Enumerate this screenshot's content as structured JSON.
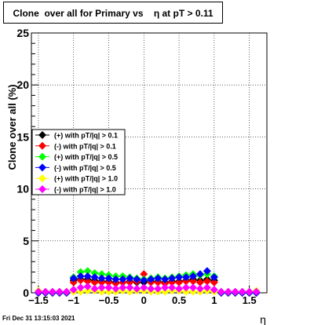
{
  "title": "Clone  over all for Primary vs    η at pT > 0.11",
  "footer": "Fri Dec 31 13:15:03 2021",
  "chart_data": {
    "type": "scatter",
    "title": "Clone  over all for Primary vs    η at pT > 0.11",
    "xlabel": "η",
    "ylabel": "Clone  over all (%)",
    "xlim": [
      -1.6,
      1.75
    ],
    "ylim": [
      0,
      25
    ],
    "xticks": [
      -1.5,
      -1,
      -0.5,
      0,
      0.5,
      1,
      1.5
    ],
    "xtick_labels": [
      "−1.5",
      "−1",
      "−0.5",
      "0",
      "0.5",
      "1",
      "1.5"
    ],
    "yticks": [
      0,
      5,
      10,
      15,
      20,
      25
    ],
    "ytick_labels": [
      "0",
      "5",
      "10",
      "15",
      "20",
      "25"
    ],
    "grid": true,
    "legend_position": "left-middle",
    "series": [
      {
        "name": "(+) with pT/|q| > 0.1",
        "color": "#000000",
        "x": [
          -1.5,
          -1.4,
          -1.3,
          -1.2,
          -1.1,
          -1.0,
          -0.9,
          -0.8,
          -0.7,
          -0.6,
          -0.5,
          -0.4,
          -0.3,
          -0.2,
          -0.1,
          0.0,
          0.1,
          0.2,
          0.3,
          0.4,
          0.5,
          0.6,
          0.7,
          0.8,
          0.9,
          1.0,
          1.1,
          1.2,
          1.3,
          1.4,
          1.5,
          1.6
        ],
        "y": [
          0,
          0,
          0,
          0,
          0,
          1.2,
          1.3,
          1.3,
          1.2,
          1.1,
          1.1,
          1.0,
          1.0,
          1.1,
          1.0,
          1.0,
          1.1,
          1.1,
          1.0,
          1.1,
          1.1,
          1.2,
          1.3,
          1.2,
          1.3,
          1.2,
          0,
          0,
          0,
          0,
          0,
          0
        ]
      },
      {
        "name": "(-) with pT/|q| > 0.1",
        "color": "#ff0000",
        "x": [
          -1.5,
          -1.4,
          -1.3,
          -1.2,
          -1.1,
          -1.0,
          -0.9,
          -0.8,
          -0.7,
          -0.6,
          -0.5,
          -0.4,
          -0.3,
          -0.2,
          -0.1,
          0.0,
          0.1,
          0.2,
          0.3,
          0.4,
          0.5,
          0.6,
          0.7,
          0.8,
          0.9,
          1.0,
          1.1,
          1.2,
          1.3,
          1.4,
          1.5,
          1.6
        ],
        "y": [
          0,
          0,
          0,
          0,
          0,
          1.0,
          1.2,
          1.1,
          1.0,
          1.0,
          1.0,
          0.9,
          1.0,
          1.0,
          1.1,
          1.8,
          1.0,
          1.0,
          0.9,
          1.0,
          1.0,
          1.1,
          1.1,
          1.0,
          1.1,
          1.0,
          0,
          0,
          0,
          0,
          0,
          0
        ]
      },
      {
        "name": "(+) with pT/|q| > 0.5",
        "color": "#00ff00",
        "x": [
          -1.5,
          -1.4,
          -1.3,
          -1.2,
          -1.1,
          -1.0,
          -0.9,
          -0.8,
          -0.7,
          -0.6,
          -0.5,
          -0.4,
          -0.3,
          -0.2,
          -0.1,
          0.0,
          0.1,
          0.2,
          0.3,
          0.4,
          0.5,
          0.6,
          0.7,
          0.8,
          0.9,
          1.0,
          1.1,
          1.2,
          1.3,
          1.4,
          1.5,
          1.6
        ],
        "y": [
          0,
          0,
          0,
          0,
          0,
          1.5,
          2.0,
          2.1,
          1.9,
          1.8,
          1.7,
          1.6,
          1.6,
          1.5,
          1.4,
          1.3,
          1.4,
          1.5,
          1.4,
          1.5,
          1.6,
          1.7,
          1.8,
          1.7,
          1.8,
          1.6,
          0,
          0,
          0,
          0,
          0,
          0
        ]
      },
      {
        "name": "(-) with pT/|q| > 0.5",
        "color": "#0000ff",
        "x": [
          -1.5,
          -1.4,
          -1.3,
          -1.2,
          -1.1,
          -1.0,
          -0.9,
          -0.8,
          -0.7,
          -0.6,
          -0.5,
          -0.4,
          -0.3,
          -0.2,
          -0.1,
          0.0,
          0.1,
          0.2,
          0.3,
          0.4,
          0.5,
          0.6,
          0.7,
          0.8,
          0.9,
          1.0,
          1.1,
          1.2,
          1.3,
          1.4,
          1.5,
          1.6
        ],
        "y": [
          0,
          0,
          0,
          0,
          0,
          1.4,
          1.6,
          1.6,
          1.5,
          1.4,
          1.4,
          1.3,
          1.3,
          1.4,
          1.3,
          1.2,
          1.3,
          1.4,
          1.3,
          1.4,
          1.5,
          1.5,
          1.6,
          1.8,
          2.1,
          1.5,
          0,
          0,
          0,
          0,
          0,
          0
        ]
      },
      {
        "name": "(+) with pT/|q| > 1.0",
        "color": "#ffff00",
        "x": [
          -1.5,
          -1.4,
          -1.3,
          -1.2,
          -1.1,
          -1.0,
          -0.9,
          -0.8,
          -0.7,
          -0.6,
          -0.5,
          -0.4,
          -0.3,
          -0.2,
          -0.1,
          0.0,
          0.1,
          0.2,
          0.3,
          0.4,
          0.5,
          0.6,
          0.7,
          0.8,
          0.9,
          1.0,
          1.1,
          1.2,
          1.3,
          1.4,
          1.5,
          1.6
        ],
        "y": [
          0.2,
          0.1,
          0.1,
          0.1,
          0.1,
          0.1,
          0.1,
          0.2,
          0.2,
          0.1,
          0.1,
          0.1,
          0.2,
          0.1,
          0.2,
          0.2,
          0.1,
          0.1,
          0.1,
          0.2,
          0.2,
          0.1,
          0.1,
          0.1,
          0.2,
          0.1,
          0.1,
          0.1,
          0.1,
          0.1,
          0.1,
          0.2
        ]
      },
      {
        "name": "(-) with pT/|q| > 1.0",
        "color": "#ff00ff",
        "x": [
          -1.5,
          -1.4,
          -1.3,
          -1.2,
          -1.1,
          -1.0,
          -0.9,
          -0.8,
          -0.7,
          -0.6,
          -0.5,
          -0.4,
          -0.3,
          -0.2,
          -0.1,
          0.0,
          0.1,
          0.2,
          0.3,
          0.4,
          0.5,
          0.6,
          0.7,
          0.8,
          0.9,
          1.0,
          1.1,
          1.2,
          1.3,
          1.4,
          1.5,
          1.6
        ],
        "y": [
          0.1,
          0.1,
          0.1,
          0.1,
          0.1,
          0.3,
          0.5,
          0.6,
          0.4,
          0.5,
          0.5,
          0.4,
          0.5,
          0.5,
          0.4,
          0.5,
          0.4,
          0.4,
          0.5,
          0.5,
          0.4,
          0.5,
          0.5,
          0.4,
          0.5,
          0.3,
          0.1,
          0.1,
          0.1,
          0.1,
          0.1,
          0.1
        ]
      }
    ]
  }
}
